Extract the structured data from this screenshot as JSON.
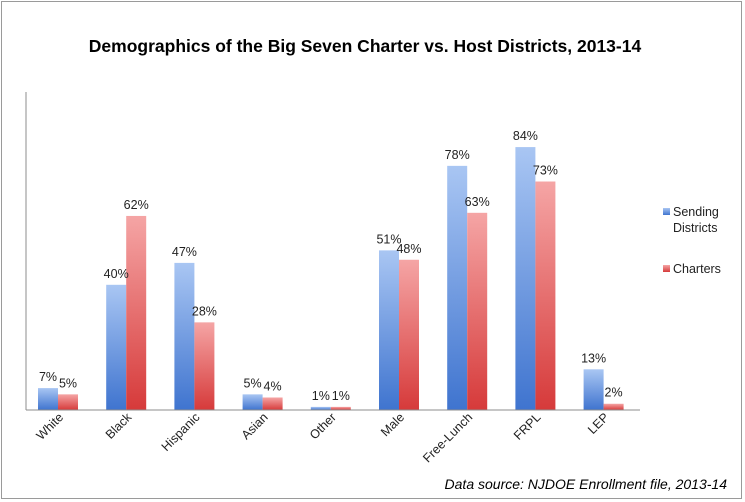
{
  "chart_data": {
    "type": "bar",
    "title": "Demographics of the Big Seven Charter vs. Host Districts, 2013-14",
    "categories": [
      "White",
      "Black",
      "Hispanic",
      "Asian",
      "Other",
      "Male",
      "Free-Lunch",
      "FRPL",
      "LEP"
    ],
    "series": [
      {
        "name": "Sending Districts",
        "values": [
          7,
          40,
          47,
          5,
          1,
          51,
          78,
          84,
          13
        ],
        "labels": [
          "7%",
          "40%",
          "47%",
          "5%",
          "1%",
          "51%",
          "78%",
          "84%",
          "13%"
        ],
        "color": "#6f9be0"
      },
      {
        "name": "Charters",
        "values": [
          5,
          62,
          28,
          4,
          1,
          48,
          63,
          73,
          2
        ],
        "labels": [
          "5%",
          "62%",
          "28%",
          "4%",
          "1%",
          "48%",
          "63%",
          "73%",
          "2%"
        ],
        "color": "#e45a5a"
      }
    ],
    "legend": [
      "Sending Districts",
      "Charters"
    ],
    "legend_position": "right",
    "ylim": [
      0,
      90
    ],
    "xlabel": "",
    "ylabel": "",
    "grid": false
  },
  "source_note": "Data source: NJDOE Enrollment file, 2013-14"
}
